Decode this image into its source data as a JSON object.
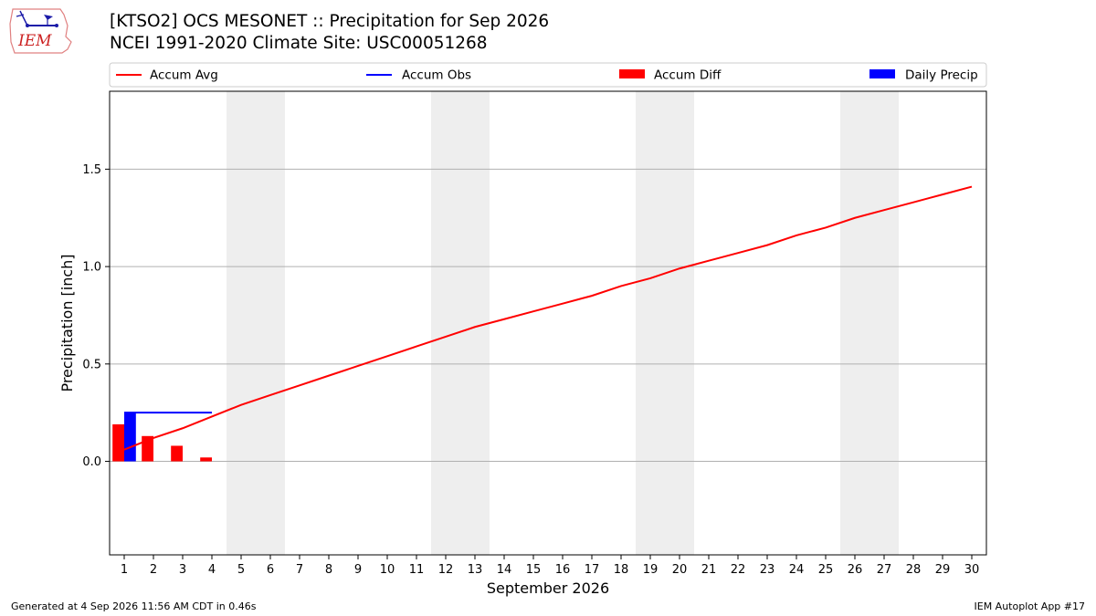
{
  "title": {
    "line1": "[KTSO2] OCS MESONET :: Precipitation for Sep 2026",
    "line2": "NCEI 1991-2020 Climate Site: USC00051268"
  },
  "logo": {
    "text": "IEM",
    "icon": "iem-logo-icon"
  },
  "footer": {
    "left": "Generated at 4 Sep 2026 11:56 AM CDT in 0.46s",
    "right": "IEM Autoplot App #17"
  },
  "colors": {
    "accum_avg": "#ff0000",
    "accum_obs": "#0000ff",
    "accum_diff": "#ff0000",
    "daily_precip": "#0000ff",
    "weekend_shade": "#eeeeee",
    "grid": "#b0b0b0"
  },
  "chart_data": {
    "type": "line",
    "xlabel": "September 2026",
    "ylabel": "Precipitation [inch]",
    "x": [
      1,
      2,
      3,
      4,
      5,
      6,
      7,
      8,
      9,
      10,
      11,
      12,
      13,
      14,
      15,
      16,
      17,
      18,
      19,
      20,
      21,
      22,
      23,
      24,
      25,
      26,
      27,
      28,
      29,
      30
    ],
    "xlim": [
      0.5,
      30.5
    ],
    "ylim": [
      -0.48,
      1.9
    ],
    "yticks": [
      0.0,
      0.5,
      1.0,
      1.5
    ],
    "ytick_labels": [
      "0.0",
      "0.5",
      "1.0",
      "1.5"
    ],
    "grid": "horizontal",
    "legend_position": "top",
    "weekend_shading": [
      [
        4.5,
        6.5
      ],
      [
        11.5,
        13.5
      ],
      [
        18.5,
        20.5
      ],
      [
        25.5,
        27.5
      ]
    ],
    "series": [
      {
        "name": "Accum Avg",
        "kind": "line",
        "x": [
          1,
          2,
          3,
          4,
          5,
          6,
          7,
          8,
          9,
          10,
          11,
          12,
          13,
          14,
          15,
          16,
          17,
          18,
          19,
          20,
          21,
          22,
          23,
          24,
          25,
          26,
          27,
          28,
          29,
          30
        ],
        "values": [
          0.06,
          0.12,
          0.17,
          0.23,
          0.29,
          0.34,
          0.39,
          0.44,
          0.49,
          0.54,
          0.59,
          0.64,
          0.69,
          0.73,
          0.77,
          0.81,
          0.85,
          0.9,
          0.94,
          0.99,
          1.03,
          1.07,
          1.11,
          1.16,
          1.2,
          1.25,
          1.29,
          1.33,
          1.37,
          1.41
        ]
      },
      {
        "name": "Accum Obs",
        "kind": "line",
        "x": [
          1,
          2,
          3,
          4
        ],
        "values": [
          0.25,
          0.25,
          0.25,
          0.25
        ]
      },
      {
        "name": "Accum Diff",
        "kind": "bar",
        "x": [
          1,
          2,
          3,
          4
        ],
        "values": [
          0.19,
          0.13,
          0.08,
          0.02
        ]
      },
      {
        "name": "Daily Precip",
        "kind": "bar",
        "x": [
          1
        ],
        "values": [
          0.25
        ]
      }
    ]
  }
}
